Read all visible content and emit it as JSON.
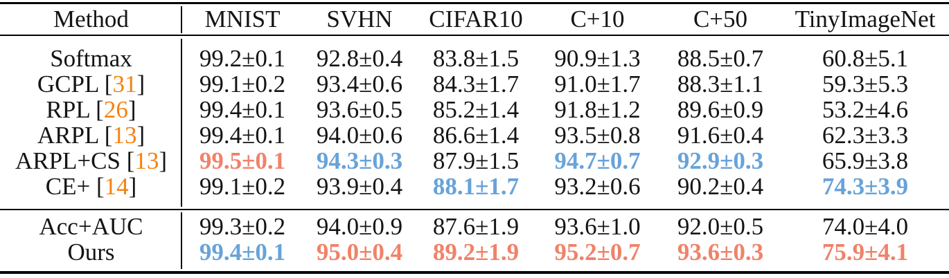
{
  "table": {
    "header": {
      "method_label": "Method",
      "dataset_columns": [
        "MNIST",
        "SVHN",
        "CIFAR10",
        "C+10",
        "C+50",
        "TinyImageNet"
      ]
    },
    "groups": [
      {
        "rows": [
          {
            "method_parts": [
              {
                "text": "Softmax",
                "style": "ink"
              }
            ],
            "cells": [
              {
                "text": "99.2±0.1",
                "style": "normal"
              },
              {
                "text": "92.8±0.4",
                "style": "normal"
              },
              {
                "text": "83.8±1.5",
                "style": "normal"
              },
              {
                "text": "90.9±1.3",
                "style": "normal"
              },
              {
                "text": "88.5±0.7",
                "style": "normal"
              },
              {
                "text": "60.8±5.1",
                "style": "normal"
              }
            ]
          },
          {
            "method_parts": [
              {
                "text": "GCPL [",
                "style": "ink"
              },
              {
                "text": "31",
                "style": "citation"
              },
              {
                "text": "]",
                "style": "ink"
              }
            ],
            "cells": [
              {
                "text": "99.1±0.2",
                "style": "normal"
              },
              {
                "text": "93.4±0.6",
                "style": "normal"
              },
              {
                "text": "84.3±1.7",
                "style": "normal"
              },
              {
                "text": "91.0±1.7",
                "style": "normal"
              },
              {
                "text": "88.3±1.1",
                "style": "normal"
              },
              {
                "text": "59.3±5.3",
                "style": "normal"
              }
            ]
          },
          {
            "method_parts": [
              {
                "text": "RPL [",
                "style": "ink"
              },
              {
                "text": "26",
                "style": "citation"
              },
              {
                "text": "]",
                "style": "ink"
              }
            ],
            "cells": [
              {
                "text": "99.4±0.1",
                "style": "normal"
              },
              {
                "text": "93.6±0.5",
                "style": "normal"
              },
              {
                "text": "85.2±1.4",
                "style": "normal"
              },
              {
                "text": "91.8±1.2",
                "style": "normal"
              },
              {
                "text": "89.6±0.9",
                "style": "normal"
              },
              {
                "text": "53.2±4.6",
                "style": "normal"
              }
            ]
          },
          {
            "method_parts": [
              {
                "text": "ARPL [",
                "style": "ink"
              },
              {
                "text": "13",
                "style": "citation"
              },
              {
                "text": "]",
                "style": "ink"
              }
            ],
            "cells": [
              {
                "text": "99.4±0.1",
                "style": "normal"
              },
              {
                "text": "94.0±0.6",
                "style": "normal"
              },
              {
                "text": "86.6±1.4",
                "style": "normal"
              },
              {
                "text": "93.5±0.8",
                "style": "normal"
              },
              {
                "text": "91.6±0.4",
                "style": "normal"
              },
              {
                "text": "62.3±3.3",
                "style": "normal"
              }
            ]
          },
          {
            "method_parts": [
              {
                "text": "ARPL+CS [",
                "style": "ink"
              },
              {
                "text": "13",
                "style": "citation"
              },
              {
                "text": "]",
                "style": "ink"
              }
            ],
            "cells": [
              {
                "text": "99.5±0.1",
                "style": "best"
              },
              {
                "text": "94.3±0.3",
                "style": "second"
              },
              {
                "text": "87.9±1.5",
                "style": "normal"
              },
              {
                "text": "94.7±0.7",
                "style": "second"
              },
              {
                "text": "92.9±0.3",
                "style": "second"
              },
              {
                "text": "65.9±3.8",
                "style": "normal"
              }
            ]
          },
          {
            "method_parts": [
              {
                "text": "CE+ [",
                "style": "ink"
              },
              {
                "text": "14",
                "style": "citation"
              },
              {
                "text": "]",
                "style": "ink"
              }
            ],
            "cells": [
              {
                "text": "99.1±0.2",
                "style": "normal"
              },
              {
                "text": "93.9±0.4",
                "style": "normal"
              },
              {
                "text": "88.1±1.7",
                "style": "second"
              },
              {
                "text": "93.2±0.6",
                "style": "normal"
              },
              {
                "text": "90.2±0.4",
                "style": "normal"
              },
              {
                "text": "74.3±3.9",
                "style": "second"
              }
            ]
          }
        ]
      },
      {
        "rows": [
          {
            "method_parts": [
              {
                "text": "Acc+AUC",
                "style": "ink"
              }
            ],
            "cells": [
              {
                "text": "99.3±0.2",
                "style": "normal"
              },
              {
                "text": "94.0±0.9",
                "style": "normal"
              },
              {
                "text": "87.6±1.9",
                "style": "normal"
              },
              {
                "text": "93.6±1.0",
                "style": "normal"
              },
              {
                "text": "92.0±0.5",
                "style": "normal"
              },
              {
                "text": "74.0±4.0",
                "style": "normal"
              }
            ]
          },
          {
            "method_parts": [
              {
                "text": "Ours",
                "style": "ink"
              }
            ],
            "cells": [
              {
                "text": "99.4±0.1",
                "style": "second"
              },
              {
                "text": "95.0±0.4",
                "style": "best"
              },
              {
                "text": "89.2±1.9",
                "style": "best"
              },
              {
                "text": "95.2±0.7",
                "style": "best"
              },
              {
                "text": "93.6±0.3",
                "style": "best"
              },
              {
                "text": "75.9±4.1",
                "style": "best"
              }
            ]
          }
        ]
      }
    ]
  },
  "colors": {
    "ink": "#141414",
    "best": "#F08269",
    "second_best": "#67A3D9",
    "citation": "#F5820F",
    "rule": "#000000",
    "background": "#FFFFFF"
  }
}
